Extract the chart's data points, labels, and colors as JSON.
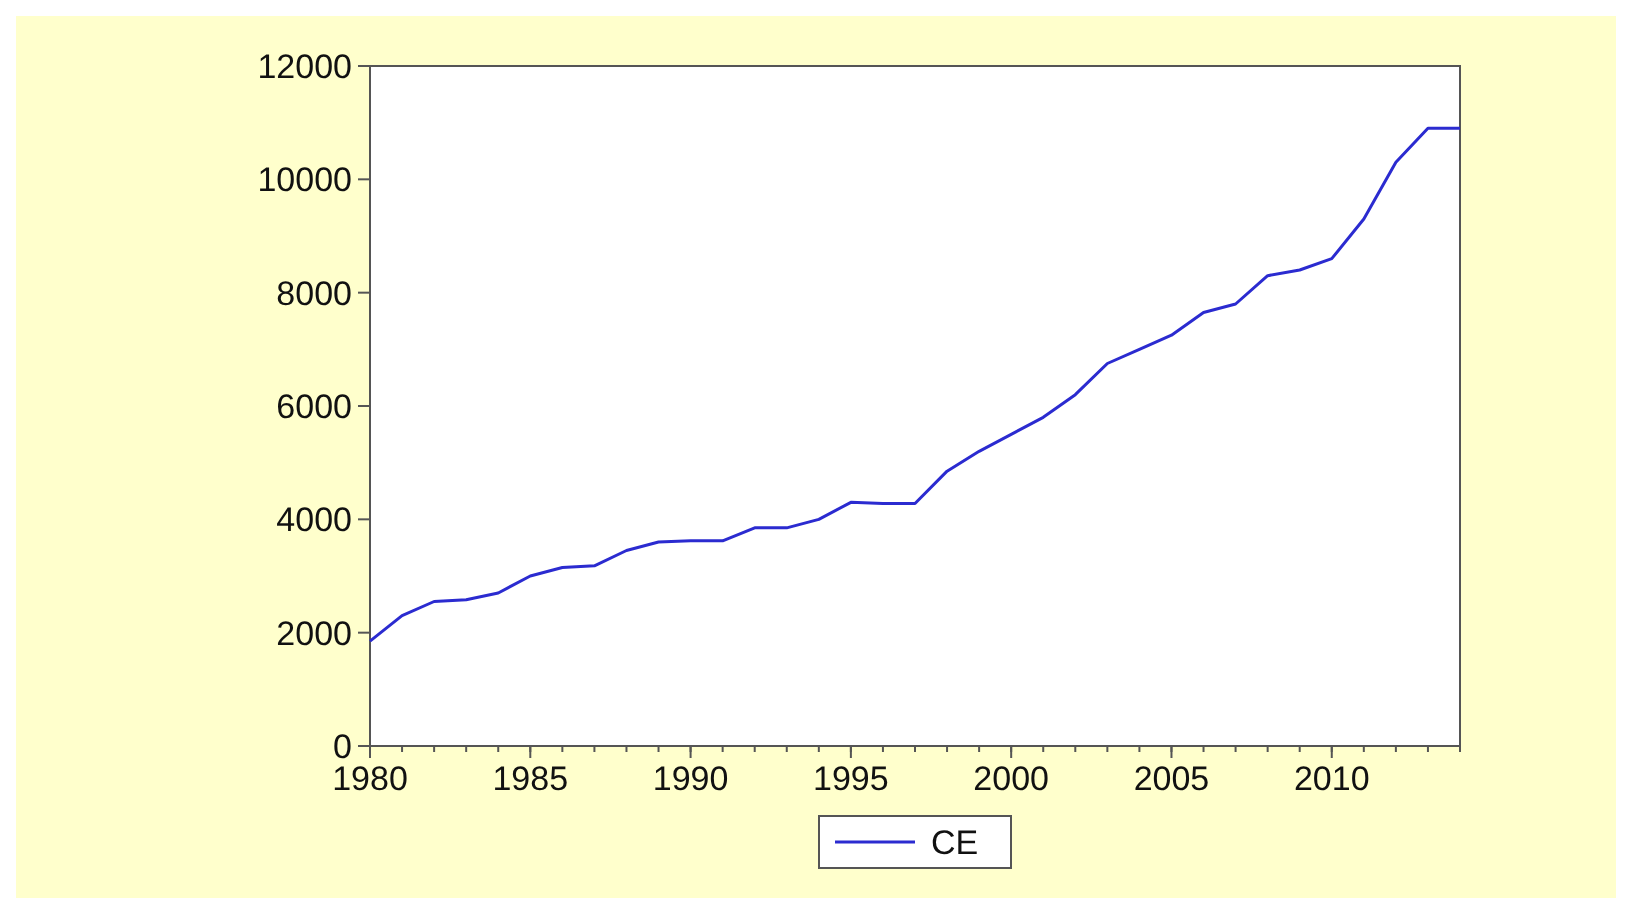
{
  "chart_data": {
    "type": "line",
    "x": [
      1980,
      1981,
      1982,
      1983,
      1984,
      1985,
      1986,
      1987,
      1988,
      1989,
      1990,
      1991,
      1992,
      1993,
      1994,
      1995,
      1996,
      1997,
      1998,
      1999,
      2000,
      2001,
      2002,
      2003,
      2004,
      2005,
      2006,
      2007,
      2008,
      2009,
      2010,
      2011,
      2012,
      2013,
      2014
    ],
    "series": [
      {
        "name": "CE",
        "color": "#2b2bd0",
        "values": [
          1850,
          2300,
          2550,
          2580,
          2700,
          3000,
          3150,
          3180,
          3450,
          3600,
          3620,
          3620,
          3850,
          3850,
          4000,
          4300,
          4280,
          4280,
          4850,
          5200,
          5500,
          5800,
          6200,
          6750,
          7000,
          7250,
          7650,
          7800,
          8300,
          8400,
          8600,
          9300,
          10300,
          10900,
          10900
        ]
      }
    ],
    "xlim": [
      1980,
      2014
    ],
    "xticks": [
      1980,
      1985,
      1990,
      1995,
      2000,
      2005,
      2010
    ],
    "ylim": [
      0,
      12000
    ],
    "yticks": [
      0,
      2000,
      4000,
      6000,
      8000,
      10000,
      12000
    ],
    "grid": false,
    "legend": "bottom",
    "marker": "none",
    "line_style": "solid"
  }
}
